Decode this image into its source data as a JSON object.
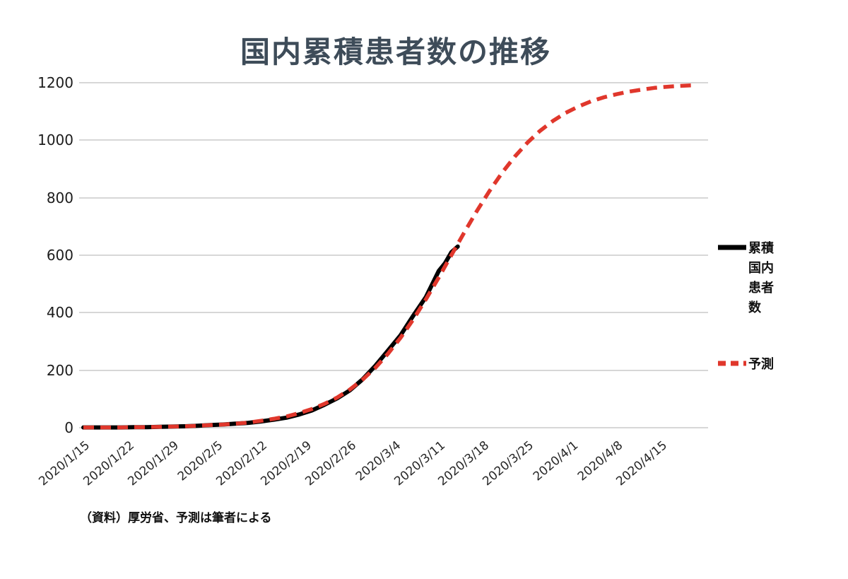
{
  "chart_data": {
    "type": "line",
    "title": "国内累積患者数の推移",
    "source_note": "（資料）厚労省、予測は筆者による",
    "x_axis": {
      "unit": "days since 2020/1/15",
      "tick_interval_days": 7,
      "tick_labels": [
        "2020/1/15",
        "2020/1/22",
        "2020/1/29",
        "2020/2/5",
        "2020/2/12",
        "2020/2/19",
        "2020/2/26",
        "2020/3/4",
        "2020/3/11",
        "2020/3/18",
        "2020/3/25",
        "2020/4/1",
        "2020/4/8",
        "2020/4/15"
      ],
      "range_days": [
        0,
        98
      ]
    },
    "y_axis": {
      "min": 0,
      "max": 1200,
      "ticks": [
        0,
        200,
        400,
        600,
        800,
        1000,
        1200
      ]
    },
    "grid": "horizontal",
    "legend_position": "right",
    "series": [
      {
        "name": "累積国内患者数",
        "color": "#000000",
        "line_style": "solid",
        "line_width": 6,
        "points": [
          [
            0,
            1
          ],
          [
            2,
            1
          ],
          [
            4,
            1
          ],
          [
            6,
            1
          ],
          [
            8,
            2
          ],
          [
            10,
            2
          ],
          [
            12,
            3
          ],
          [
            14,
            4
          ],
          [
            16,
            5
          ],
          [
            18,
            7
          ],
          [
            20,
            9
          ],
          [
            22,
            11
          ],
          [
            24,
            14
          ],
          [
            26,
            17
          ],
          [
            28,
            22
          ],
          [
            30,
            28
          ],
          [
            32,
            35
          ],
          [
            34,
            46
          ],
          [
            36,
            60
          ],
          [
            38,
            80
          ],
          [
            40,
            102
          ],
          [
            42,
            130
          ],
          [
            44,
            168
          ],
          [
            46,
            215
          ],
          [
            48,
            268
          ],
          [
            50,
            322
          ],
          [
            52,
            390
          ],
          [
            54,
            455
          ],
          [
            55,
            500
          ],
          [
            56,
            545
          ],
          [
            57,
            572
          ],
          [
            58,
            610
          ],
          [
            59,
            630
          ]
        ]
      },
      {
        "name": "予測",
        "color": "#e0372c",
        "line_style": "dashed",
        "line_width": 5.5,
        "points": [
          [
            0,
            1
          ],
          [
            2,
            1
          ],
          [
            4,
            1
          ],
          [
            6,
            1
          ],
          [
            8,
            2
          ],
          [
            10,
            2
          ],
          [
            12,
            3
          ],
          [
            14,
            4
          ],
          [
            16,
            5
          ],
          [
            18,
            7
          ],
          [
            20,
            9
          ],
          [
            22,
            11
          ],
          [
            24,
            14
          ],
          [
            26,
            18
          ],
          [
            28,
            24
          ],
          [
            30,
            31
          ],
          [
            32,
            39
          ],
          [
            34,
            51
          ],
          [
            36,
            65
          ],
          [
            38,
            83
          ],
          [
            40,
            105
          ],
          [
            42,
            133
          ],
          [
            44,
            167
          ],
          [
            46,
            208
          ],
          [
            48,
            257
          ],
          [
            50,
            313
          ],
          [
            52,
            377
          ],
          [
            54,
            447
          ],
          [
            56,
            522
          ],
          [
            58,
            600
          ],
          [
            60,
            678
          ],
          [
            62,
            753
          ],
          [
            64,
            823
          ],
          [
            66,
            887
          ],
          [
            68,
            943
          ],
          [
            70,
            992
          ],
          [
            72,
            1033
          ],
          [
            74,
            1067
          ],
          [
            76,
            1095
          ],
          [
            78,
            1117
          ],
          [
            80,
            1135
          ],
          [
            82,
            1149
          ],
          [
            84,
            1160
          ],
          [
            86,
            1169
          ],
          [
            88,
            1176
          ],
          [
            90,
            1182
          ],
          [
            92,
            1186
          ],
          [
            94,
            1189
          ],
          [
            96,
            1191
          ]
        ]
      }
    ]
  }
}
